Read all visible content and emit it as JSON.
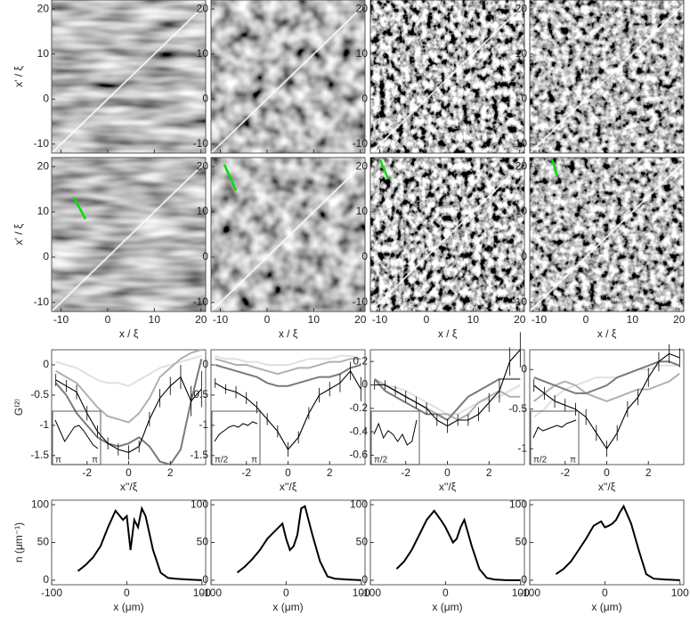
{
  "chart_data": [
    {
      "type": "heatmap",
      "xlim": [
        -12,
        21
      ],
      "ylim": [
        -12,
        22
      ],
      "xticks": [
        -10,
        0,
        10,
        20
      ],
      "yticks": [
        -10,
        0,
        10,
        20
      ],
      "ylabel": "x' / ξ"
    },
    {
      "type": "heatmap",
      "xlim": [
        -12,
        21
      ],
      "ylim": [
        -12,
        22
      ],
      "xticks": [
        -10,
        0,
        10,
        20
      ],
      "yticks": [
        -10,
        0,
        10,
        20
      ]
    },
    {
      "type": "heatmap",
      "xlim": [
        -12,
        21
      ],
      "ylim": [
        -12,
        22
      ],
      "xticks": [
        -10,
        0,
        10,
        20
      ],
      "yticks": [
        -10,
        0,
        10,
        20
      ]
    },
    {
      "type": "heatmap",
      "xlim": [
        -12,
        21
      ],
      "ylim": [
        -12,
        22
      ],
      "xticks": [
        -10,
        0,
        10,
        20
      ],
      "yticks": [
        -10,
        0,
        10,
        20
      ]
    },
    {
      "type": "heatmap",
      "xlim": [
        -12,
        21
      ],
      "ylim": [
        -12,
        22
      ],
      "xticks": [
        -10,
        0,
        10,
        20
      ],
      "yticks": [
        -10,
        0,
        10,
        20
      ],
      "ylabel": "x' / ξ",
      "xlabel": "x / ξ"
    },
    {
      "type": "heatmap",
      "xlim": [
        -12,
        21
      ],
      "ylim": [
        -12,
        22
      ],
      "xticks": [
        -10,
        0,
        10,
        20
      ],
      "yticks": [
        -10,
        0,
        10,
        20
      ],
      "xlabel": "x / ξ"
    },
    {
      "type": "heatmap",
      "xlim": [
        -12,
        21
      ],
      "ylim": [
        -12,
        22
      ],
      "xticks": [
        -10,
        0,
        10,
        20
      ],
      "yticks": [
        -10,
        0,
        10,
        20
      ],
      "xlabel": "x / ξ"
    },
    {
      "type": "heatmap",
      "xlim": [
        -12,
        21
      ],
      "ylim": [
        -12,
        22
      ],
      "xticks": [
        -10,
        0,
        10,
        20
      ],
      "yticks": [
        -10,
        0,
        10,
        20
      ],
      "xlabel": "x / ξ"
    },
    {
      "type": "line",
      "xlabel": "x''/ξ",
      "ylabel": "G⁽²⁾",
      "xlim": [
        -3.7,
        3.7
      ],
      "ylim": [
        -1.65,
        0.25
      ],
      "xticks": [
        -2,
        0,
        2
      ],
      "yticks": [
        -1.5,
        -1,
        -0.5,
        0
      ],
      "x": [
        -3.5,
        -3,
        -2.5,
        -2,
        -1.5,
        -1,
        -0.5,
        0,
        0.5,
        1,
        1.5,
        2,
        2.5,
        3,
        3.5
      ],
      "series": [
        {
          "color": "#e0e0e0",
          "values": [
            0.05,
            0,
            -0.05,
            -0.15,
            -0.25,
            -0.3,
            -0.3,
            -0.35,
            -0.25,
            -0.15,
            -0.05,
            0,
            0.05,
            0.1,
            0.15
          ]
        },
        {
          "color": "#b0b0b0",
          "values": [
            -0.1,
            -0.2,
            -0.3,
            -0.5,
            -0.7,
            -0.85,
            -0.9,
            -0.95,
            -0.8,
            -0.55,
            -0.2,
            -0.05,
            0.1,
            0.2,
            0.25
          ]
        },
        {
          "color": "#7a7a7a",
          "values": [
            -0.3,
            -0.5,
            -0.8,
            -1.0,
            -1.2,
            -1.3,
            -1.35,
            -1.3,
            -1.2,
            -1.35,
            -1.6,
            -1.65,
            -1.4,
            -0.6,
            0.1
          ]
        },
        {
          "color": "#000000",
          "values": [
            -0.25,
            -0.35,
            -0.45,
            -0.8,
            -1.1,
            -1.3,
            -1.4,
            -1.45,
            -1.35,
            -0.9,
            -0.55,
            -0.35,
            -0.2,
            -0.6,
            -0.4
          ],
          "errors": [
            0.1,
            0.1,
            0.12,
            0.12,
            0.1,
            0.1,
            0.1,
            0.12,
            0.1,
            0.12,
            0.15,
            0.15,
            0.2,
            0.25,
            0.3
          ]
        }
      ],
      "inset": {
        "labels": [
          "π",
          "π"
        ],
        "ylim": [
          0,
          1
        ],
        "values": [
          0.9,
          0.6,
          0.3,
          0.5,
          0.7,
          0.75,
          0.6,
          0.4,
          0.2,
          0.1
        ]
      }
    },
    {
      "type": "line",
      "xlabel": "x''/ξ",
      "xlim": [
        -3.7,
        3.7
      ],
      "ylim": [
        -1.65,
        0.25
      ],
      "xticks": [
        -2,
        0,
        2
      ],
      "yticks": [
        -1.5,
        -1,
        -0.5,
        0
      ],
      "x": [
        -3.5,
        -3,
        -2.5,
        -2,
        -1.5,
        -1,
        -0.5,
        0,
        0.5,
        1,
        1.5,
        2,
        2.5,
        3,
        3.5
      ],
      "series": [
        {
          "color": "#e0e0e0",
          "values": [
            0.15,
            0.1,
            0.1,
            0.05,
            0.05,
            0,
            0,
            0,
            0.05,
            0.1,
            0.1,
            0.1,
            0.15,
            0.15,
            0.1
          ]
        },
        {
          "color": "#b0b0b0",
          "values": [
            0.1,
            0.05,
            0,
            0,
            -0.05,
            -0.1,
            -0.15,
            -0.1,
            -0.05,
            -0.05,
            0,
            0.05,
            0.05,
            0.1,
            0.1
          ]
        },
        {
          "color": "#7a7a7a",
          "values": [
            0,
            -0.05,
            -0.1,
            -0.15,
            -0.2,
            -0.3,
            -0.35,
            -0.35,
            -0.3,
            -0.25,
            -0.2,
            -0.2,
            -0.15,
            -0.05,
            0
          ]
        },
        {
          "color": "#000000",
          "values": [
            -0.3,
            -0.4,
            -0.45,
            -0.55,
            -0.7,
            -0.9,
            -1.1,
            -1.4,
            -1.2,
            -0.8,
            -0.5,
            -0.4,
            -0.3,
            -0.1,
            -0.4
          ],
          "errors": [
            0.08,
            0.08,
            0.1,
            0.1,
            0.1,
            0.1,
            0.1,
            0.12,
            0.1,
            0.1,
            0.12,
            0.12,
            0.15,
            0.15,
            0.2
          ]
        }
      ],
      "inset": {
        "labels": [
          "π/2",
          "π"
        ],
        "ylim": [
          0,
          1
        ],
        "values": [
          0.3,
          0.5,
          0.6,
          0.7,
          0.75,
          0.7,
          0.8,
          0.75,
          0.85,
          0.8
        ]
      }
    },
    {
      "type": "line",
      "xlabel": "x''/ξ",
      "xlim": [
        -3.7,
        3.7
      ],
      "ylim": [
        -0.68,
        0.3
      ],
      "xticks": [
        -2,
        0,
        2
      ],
      "yticks": [
        -0.6,
        -0.4,
        -0.2,
        0,
        0.2
      ],
      "x": [
        -3.5,
        -3,
        -2.5,
        -2,
        -1.5,
        -1,
        -0.5,
        0,
        0.5,
        1,
        1.5,
        2,
        2.5,
        3,
        3.5
      ],
      "series": [
        {
          "color": "#e0e0e0",
          "values": [
            0.02,
            0,
            -0.02,
            -0.05,
            -0.1,
            -0.15,
            -0.2,
            -0.25,
            -0.25,
            -0.2,
            -0.15,
            -0.12,
            -0.1,
            -0.05,
            0
          ]
        },
        {
          "color": "#b0b0b0",
          "values": [
            0.05,
            0,
            -0.05,
            -0.1,
            -0.15,
            -0.2,
            -0.25,
            -0.25,
            -0.3,
            -0.25,
            -0.15,
            -0.1,
            -0.05,
            -0.1,
            -0.1
          ]
        },
        {
          "color": "#7a7a7a",
          "values": [
            0.05,
            -0.05,
            -0.1,
            -0.15,
            -0.2,
            -0.25,
            -0.25,
            -0.3,
            -0.2,
            -0.1,
            -0.05,
            0,
            0.05,
            0.05,
            0.05
          ]
        },
        {
          "color": "#000000",
          "values": [
            0,
            0,
            -0.05,
            -0.1,
            -0.15,
            -0.2,
            -0.3,
            -0.35,
            -0.3,
            -0.3,
            -0.25,
            -0.15,
            -0.05,
            0.2,
            0.3
          ],
          "errors": [
            0.04,
            0.04,
            0.04,
            0.05,
            0.05,
            0.05,
            0.05,
            0.06,
            0.05,
            0.05,
            0.06,
            0.08,
            0.1,
            0.12,
            0.15
          ]
        }
      ],
      "inset": {
        "labels": [
          "π/2"
        ],
        "ylim": [
          0,
          1
        ],
        "values": [
          0.5,
          0.8,
          0.4,
          0.6,
          0.5,
          0.3,
          0.5,
          0.2,
          0.3,
          0.9
        ]
      }
    },
    {
      "type": "line",
      "xlabel": "x''/ξ",
      "xlim": [
        -3.7,
        3.7
      ],
      "ylim": [
        -1.2,
        0.25
      ],
      "xticks": [
        -2,
        0,
        2
      ],
      "yticks": [
        -1,
        -0.5,
        0
      ],
      "x": [
        -3.5,
        -3,
        -2.5,
        -2,
        -1.5,
        -1,
        -0.5,
        0,
        0.5,
        1,
        1.5,
        2,
        2.5,
        3,
        3.5
      ],
      "series": [
        {
          "color": "#e0e0e0",
          "values": [
            -0.6,
            -0.5,
            -0.35,
            -0.25,
            -0.2,
            -0.15,
            -0.1,
            -0.1,
            -0.1,
            -0.05,
            0,
            0,
            0.05,
            0.05,
            0.05
          ]
        },
        {
          "color": "#b0b0b0",
          "values": [
            -0.4,
            -0.3,
            -0.2,
            -0.15,
            -0.2,
            -0.3,
            -0.35,
            -0.4,
            -0.35,
            -0.3,
            -0.25,
            -0.25,
            -0.2,
            -0.15,
            -0.05
          ]
        },
        {
          "color": "#7a7a7a",
          "values": [
            -0.1,
            -0.15,
            -0.2,
            -0.25,
            -0.3,
            -0.3,
            -0.25,
            -0.2,
            -0.1,
            -0.05,
            0,
            0.05,
            0.1,
            0.1,
            0.05
          ]
        },
        {
          "color": "#000000",
          "values": [
            -0.2,
            -0.3,
            -0.4,
            -0.45,
            -0.5,
            -0.6,
            -0.8,
            -1.0,
            -0.8,
            -0.5,
            -0.35,
            -0.1,
            0.1,
            0.2,
            0.15
          ],
          "errors": [
            0.08,
            0.08,
            0.08,
            0.08,
            0.08,
            0.1,
            0.1,
            0.1,
            0.1,
            0.1,
            0.1,
            0.12,
            0.12,
            0.12,
            0.12
          ]
        }
      ],
      "inset": {
        "labels": [
          "π/2",
          "π"
        ],
        "ylim": [
          0,
          1
        ],
        "values": [
          0.4,
          0.7,
          0.6,
          0.65,
          0.7,
          0.75,
          0.7,
          0.8,
          0.85,
          0.9
        ]
      }
    },
    {
      "type": "line",
      "xlabel": "x (μm)",
      "ylabel": "n (μm⁻¹)",
      "xlim": [
        -100,
        105
      ],
      "ylim": [
        -6,
        106
      ],
      "xticks": [
        -100,
        0,
        100
      ],
      "yticks": [
        0,
        50,
        100
      ],
      "x": [
        -65,
        -55,
        -45,
        -35,
        -25,
        -15,
        -5,
        0,
        5,
        10,
        15,
        20,
        25,
        35,
        45,
        55,
        65,
        80,
        100
      ],
      "series": [
        {
          "color": "#000000",
          "values": [
            12,
            20,
            30,
            45,
            70,
            92,
            80,
            85,
            40,
            80,
            70,
            95,
            85,
            40,
            10,
            3,
            2,
            1,
            0
          ]
        }
      ]
    },
    {
      "type": "line",
      "xlabel": "x (μm)",
      "xlim": [
        -100,
        105
      ],
      "ylim": [
        -6,
        106
      ],
      "xticks": [
        -100,
        0,
        100
      ],
      "yticks": [
        0,
        50,
        100
      ],
      "x": [
        -65,
        -55,
        -45,
        -35,
        -25,
        -15,
        -5,
        0,
        5,
        10,
        15,
        20,
        25,
        35,
        45,
        55,
        65,
        80,
        100
      ],
      "series": [
        {
          "color": "#000000",
          "values": [
            10,
            18,
            28,
            40,
            55,
            65,
            75,
            55,
            40,
            45,
            60,
            95,
            98,
            60,
            25,
            5,
            2,
            1,
            0
          ]
        }
      ]
    },
    {
      "type": "line",
      "xlabel": "x (μm)",
      "xlim": [
        -100,
        105
      ],
      "ylim": [
        -6,
        106
      ],
      "xticks": [
        -100,
        0,
        100
      ],
      "yticks": [
        0,
        50,
        100
      ],
      "x": [
        -65,
        -55,
        -45,
        -35,
        -25,
        -15,
        -5,
        0,
        5,
        10,
        15,
        20,
        25,
        35,
        45,
        55,
        65,
        80,
        100
      ],
      "series": [
        {
          "color": "#000000",
          "values": [
            15,
            25,
            40,
            60,
            80,
            92,
            78,
            70,
            60,
            50,
            55,
            70,
            80,
            45,
            15,
            3,
            1,
            0,
            0
          ]
        }
      ]
    },
    {
      "type": "line",
      "xlabel": "x (μm)",
      "xlim": [
        -100,
        105
      ],
      "ylim": [
        -6,
        106
      ],
      "xticks": [
        -100,
        0,
        100
      ],
      "yticks": [
        0,
        50,
        100
      ],
      "x": [
        -65,
        -55,
        -45,
        -35,
        -25,
        -15,
        -5,
        0,
        5,
        10,
        15,
        20,
        25,
        35,
        45,
        55,
        65,
        80,
        100
      ],
      "series": [
        {
          "color": "#000000",
          "values": [
            8,
            15,
            25,
            40,
            55,
            72,
            78,
            70,
            72,
            75,
            80,
            90,
            98,
            75,
            40,
            8,
            2,
            1,
            0
          ]
        }
      ]
    }
  ]
}
